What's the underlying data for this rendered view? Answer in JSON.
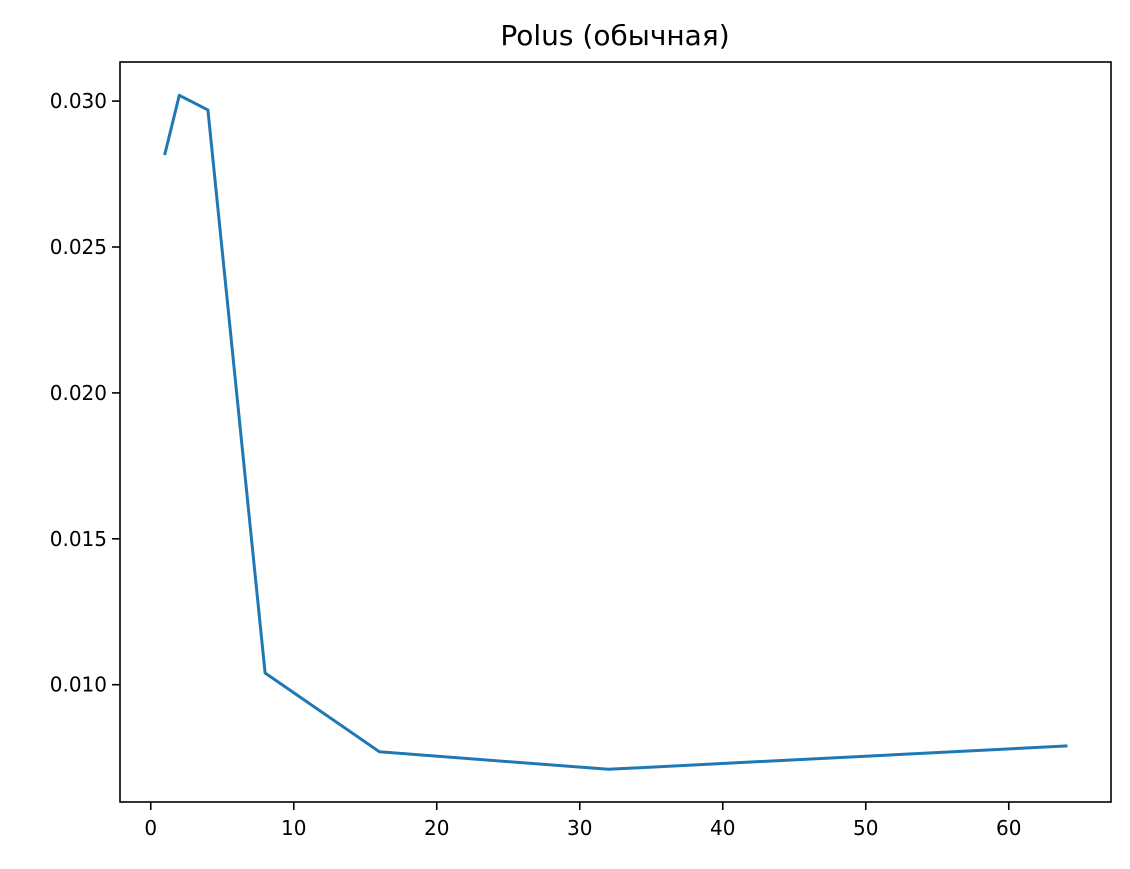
{
  "chart_data": {
    "type": "line",
    "title": "Polus (обычная)",
    "xlabel": "",
    "ylabel": "",
    "xlim": [
      -2.15,
      67.15
    ],
    "ylim": [
      0.00598,
      0.03134
    ],
    "xticks": [
      0,
      10,
      20,
      30,
      40,
      50,
      60
    ],
    "xtick_labels": [
      "0",
      "10",
      "20",
      "30",
      "40",
      "50",
      "60"
    ],
    "yticks": [
      0.01,
      0.015,
      0.02,
      0.025,
      0.03
    ],
    "ytick_labels": [
      "0.010",
      "0.015",
      "0.020",
      "0.025",
      "0.030"
    ],
    "grid": false,
    "legend": "none",
    "series": [
      {
        "color": "#1f77b4",
        "x": [
          1,
          2,
          4,
          8,
          16,
          32,
          64
        ],
        "y": [
          0.0282,
          0.0302,
          0.0297,
          0.0104,
          0.0077,
          0.0071,
          0.0079
        ]
      }
    ]
  }
}
